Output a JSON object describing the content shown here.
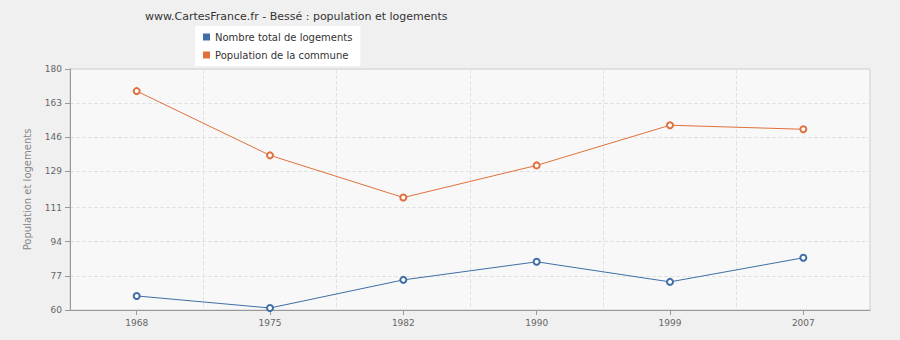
{
  "chart_data": {
    "type": "line",
    "title": "www.CartesFrance.fr - Bessé : population et logements",
    "y_label": "Population et logements",
    "categories": [
      "1968",
      "1975",
      "1982",
      "1990",
      "1999",
      "2007"
    ],
    "series": [
      {
        "name": "Nombre total de logements",
        "color": "#3f6ea6",
        "marker": "circle",
        "values": [
          67,
          61,
          75,
          84,
          74,
          86
        ]
      },
      {
        "name": "Population de la commune",
        "color": "#e0703c",
        "marker": "circle",
        "values": [
          169,
          137,
          116,
          132,
          152,
          150
        ]
      }
    ],
    "ylim": [
      60,
      180
    ],
    "yticks": [
      60,
      77,
      94,
      111,
      129,
      146,
      163,
      180
    ],
    "grid": true,
    "legend": "top-left"
  }
}
